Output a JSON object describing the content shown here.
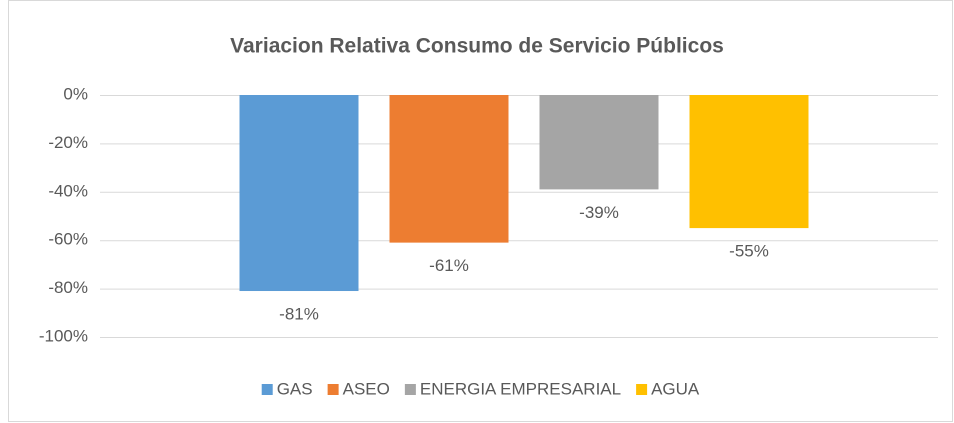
{
  "chart_data": {
    "type": "bar",
    "title": "Variacion Relativa Consumo de Servicio Públicos",
    "series": [
      {
        "name": "GAS",
        "color": "#5b9bd5",
        "values": [
          -81
        ],
        "value_labels": [
          "-81%"
        ]
      },
      {
        "name": "ASEO",
        "color": "#ed7d31",
        "values": [
          -61
        ],
        "value_labels": [
          "-61%"
        ]
      },
      {
        "name": "ENERGIA EMPRESARIAL",
        "color": "#a5a5a5",
        "values": [
          -39
        ],
        "value_labels": [
          "-39%"
        ]
      },
      {
        "name": "AGUA",
        "color": "#ffc000",
        "values": [
          -55
        ],
        "value_labels": [
          "-55%"
        ]
      }
    ],
    "ylim": [
      -100,
      0
    ],
    "yticks": [
      {
        "value": 0,
        "label": "0%"
      },
      {
        "value": -20,
        "label": "-20%"
      },
      {
        "value": -40,
        "label": "-40%"
      },
      {
        "value": -60,
        "label": "-60%"
      },
      {
        "value": -80,
        "label": "-80%"
      },
      {
        "value": -100,
        "label": "-100%"
      }
    ],
    "grid": true,
    "legend": "bottom"
  }
}
